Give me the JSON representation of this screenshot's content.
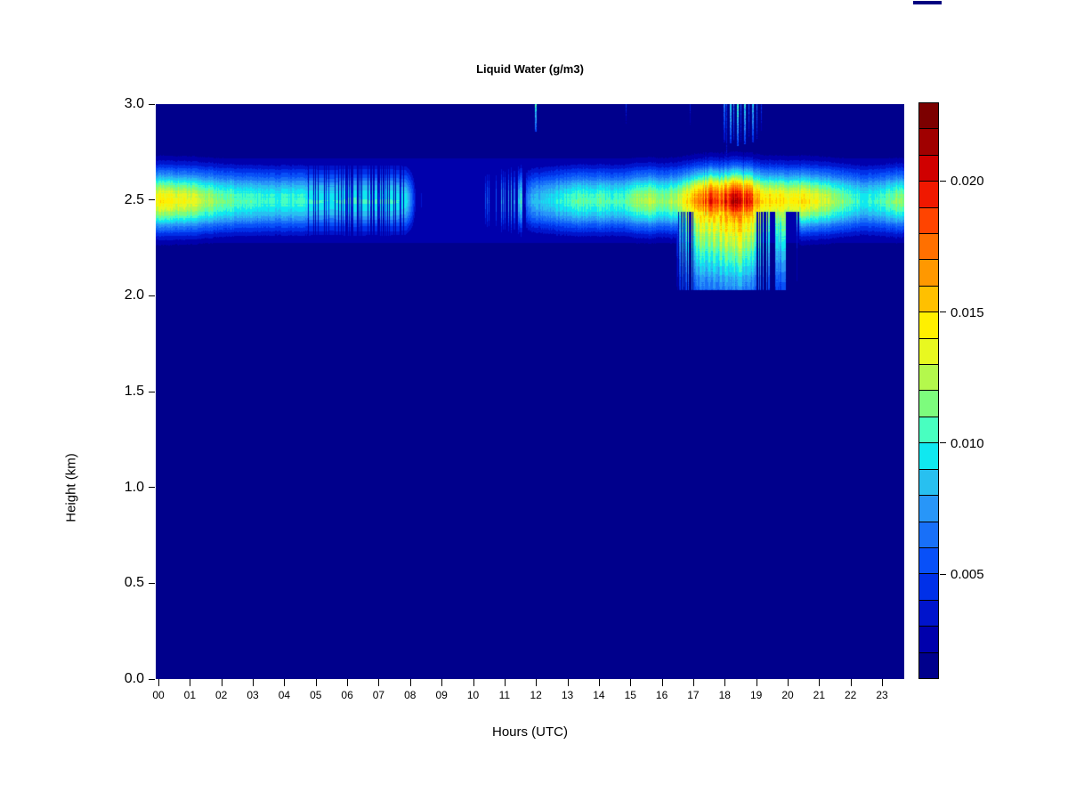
{
  "chart_data": {
    "type": "heatmap",
    "title": "Liquid Water (g/m3)",
    "xlabel": "Hours (UTC)",
    "ylabel": "Height (km)",
    "x_range_hours": [
      0,
      23.85
    ],
    "y_range_km": [
      0,
      3
    ],
    "x_tick_labels": [
      "00",
      "01",
      "02",
      "03",
      "04",
      "05",
      "06",
      "07",
      "08",
      "09",
      "10",
      "11",
      "12",
      "13",
      "14",
      "15",
      "16",
      "17",
      "18",
      "19",
      "20",
      "21",
      "22",
      "23"
    ],
    "y_ticks": [
      {
        "km": 0.0,
        "label": "0.0"
      },
      {
        "km": 0.5,
        "label": "0.5"
      },
      {
        "km": 1.0,
        "label": "1.0"
      },
      {
        "km": 1.5,
        "label": "1.5"
      },
      {
        "km": 2.0,
        "label": "2.0"
      },
      {
        "km": 2.5,
        "label": "2.5"
      },
      {
        "km": 3.0,
        "label": "3.0"
      }
    ],
    "colorbar": {
      "range": [
        0.001,
        0.023
      ],
      "step": 0.001,
      "ticks": [
        {
          "value": 0.005,
          "label": "0.005"
        },
        {
          "value": 0.01,
          "label": "0.010"
        },
        {
          "value": 0.015,
          "label": "0.015"
        },
        {
          "value": 0.02,
          "label": "0.020"
        }
      ],
      "colors": [
        "#00008c",
        "#0000ac",
        "#0014cc",
        "#0030e8",
        "#0850f8",
        "#1870f8",
        "#2896f8",
        "#28c0f0",
        "#10e8f0",
        "#48ffc0",
        "#7dfc7d",
        "#b4f84c",
        "#e8f820",
        "#fff000",
        "#ffc000",
        "#ff9800",
        "#ff7000",
        "#ff4400",
        "#f01800",
        "#d00000",
        "#a00000",
        "#7c0000"
      ]
    },
    "band": {
      "center_km": 2.5,
      "sigma_km": 0.118,
      "floor_value": 0.0021,
      "floor_extent_km": [
        2.28,
        2.72
      ],
      "peak_profile": [
        [
          0.0,
          0.0142
        ],
        [
          0.7,
          0.0138
        ],
        [
          1.3,
          0.0128
        ],
        [
          1.9,
          0.0115
        ],
        [
          2.5,
          0.0107
        ],
        [
          3.1,
          0.0103
        ],
        [
          3.7,
          0.0101
        ],
        [
          4.3,
          0.0102
        ],
        [
          4.9,
          0.0099
        ],
        [
          5.5,
          0.0097
        ],
        [
          6.1,
          0.0101
        ],
        [
          6.7,
          0.0099
        ],
        [
          7.3,
          0.01
        ],
        [
          7.85,
          0.0096
        ],
        [
          8.05,
          0.006
        ],
        [
          8.2,
          0.002
        ],
        [
          9.0,
          0.0014
        ],
        [
          10.2,
          0.0015
        ],
        [
          10.5,
          0.0032
        ],
        [
          11.0,
          0.0036
        ],
        [
          11.5,
          0.005
        ],
        [
          11.85,
          0.008
        ],
        [
          12.3,
          0.009
        ],
        [
          12.9,
          0.01
        ],
        [
          13.5,
          0.011
        ],
        [
          14.1,
          0.0108
        ],
        [
          14.7,
          0.0105
        ],
        [
          15.2,
          0.012
        ],
        [
          15.6,
          0.0128
        ],
        [
          16.0,
          0.0116
        ],
        [
          16.35,
          0.0124
        ],
        [
          16.7,
          0.0142
        ],
        [
          17.0,
          0.0168
        ],
        [
          17.25,
          0.0192
        ],
        [
          17.5,
          0.02
        ],
        [
          17.75,
          0.0192
        ],
        [
          18.0,
          0.0208
        ],
        [
          18.3,
          0.0216
        ],
        [
          18.6,
          0.021
        ],
        [
          18.85,
          0.0196
        ],
        [
          19.05,
          0.0165
        ],
        [
          19.3,
          0.0152
        ],
        [
          19.55,
          0.0155
        ],
        [
          19.8,
          0.015
        ],
        [
          20.1,
          0.0144
        ],
        [
          20.45,
          0.015
        ],
        [
          20.8,
          0.014
        ],
        [
          21.2,
          0.013
        ],
        [
          21.6,
          0.0118
        ],
        [
          22.0,
          0.0107
        ],
        [
          22.4,
          0.01
        ],
        [
          22.8,
          0.0102
        ],
        [
          23.2,
          0.0112
        ],
        [
          23.6,
          0.0122
        ],
        [
          23.85,
          0.0118
        ]
      ]
    },
    "striation_regions": [
      {
        "from": 0.0,
        "to": 4.75,
        "mode": "flicker",
        "min": 0.94,
        "max": 1.04,
        "seed": 11
      },
      {
        "from": 4.75,
        "to": 8.02,
        "mode": "dark",
        "density": 0.42,
        "min": 0.05,
        "max": 0.6,
        "seed": 21
      },
      {
        "from": 8.05,
        "to": 8.5,
        "mode": "bright",
        "density": 0.15,
        "min": 1.6,
        "max": 2.4,
        "base": 1.0,
        "seed": 31
      },
      {
        "from": 10.38,
        "to": 11.68,
        "mode": "bright",
        "density": 0.3,
        "min": 1.5,
        "max": 2.3,
        "base": 0.5,
        "seed": 41
      },
      {
        "from": 11.7,
        "to": 16.4,
        "mode": "flicker",
        "min": 0.92,
        "max": 1.05,
        "seed": 51
      },
      {
        "from": 16.4,
        "to": 20.4,
        "mode": "flicker",
        "min": 0.9,
        "max": 1.02,
        "seed": 61
      },
      {
        "from": 17.25,
        "to": 19.3,
        "mode": "dark",
        "density": 0.3,
        "min": 0.82,
        "max": 0.97,
        "seed": 71
      },
      {
        "from": 20.4,
        "to": 23.9,
        "mode": "flicker",
        "min": 0.93,
        "max": 1.05,
        "seed": 81
      }
    ],
    "deep_event": {
      "bottom_km": 2.03,
      "envelope": [
        [
          16.38,
          0
        ],
        [
          16.58,
          1
        ],
        [
          19.9,
          1
        ],
        [
          20.15,
          0.85
        ],
        [
          20.38,
          0
        ]
      ],
      "gap_clusters": [
        {
          "from": 16.52,
          "to": 16.98,
          "density": 0.38,
          "seed": 91
        },
        {
          "from": 19.0,
          "to": 19.58,
          "density": 0.6,
          "seed": 92
        },
        {
          "from": 19.92,
          "to": 20.38,
          "density": 0.82,
          "seed": 93
        }
      ]
    },
    "top_streaks": [
      [
        11.98,
        2.855,
        0.0105,
        2
      ],
      [
        14.86,
        2.9,
        0.0042,
        1
      ],
      [
        16.9,
        2.88,
        0.0035,
        1
      ],
      [
        17.96,
        2.8,
        0.0065,
        2
      ],
      [
        18.06,
        2.6,
        0.0048,
        1
      ],
      [
        18.16,
        2.795,
        0.0095,
        2
      ],
      [
        18.28,
        2.81,
        0.007,
        1
      ],
      [
        18.38,
        2.78,
        0.0105,
        2
      ],
      [
        18.5,
        2.8,
        0.006,
        1
      ],
      [
        18.62,
        2.79,
        0.0095,
        2
      ],
      [
        18.75,
        2.83,
        0.0055,
        1
      ],
      [
        18.88,
        2.8,
        0.0085,
        2
      ],
      [
        19.02,
        2.82,
        0.006,
        1
      ],
      [
        19.16,
        2.86,
        0.0045,
        1
      ]
    ],
    "background_color": "#00008c",
    "artifact_color": "#000080"
  }
}
